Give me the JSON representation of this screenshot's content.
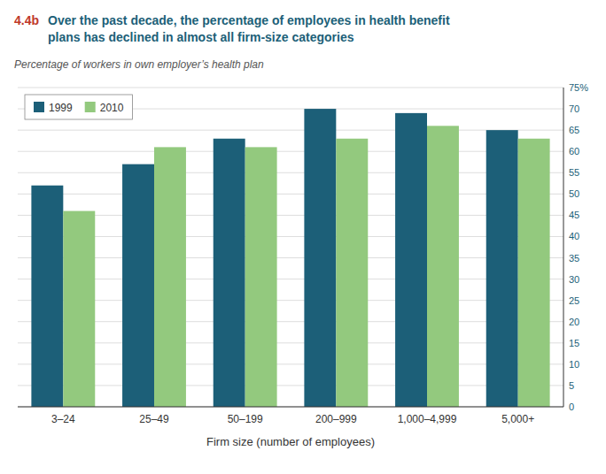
{
  "chart_data": {
    "type": "bar",
    "annotations": [
      "4.4b"
    ],
    "title": "Over the past decade, the percentage of employees in health benefit\nplans has declined in almost all firm-size categories",
    "subtitle": "Percentage of workers in own employer’s health plan",
    "x_label": "Firm size (number of employees)",
    "categories": [
      "3–24",
      "25–49",
      "50–199",
      "200–999",
      "1,000–4,999",
      "5,000+"
    ],
    "series": [
      {
        "name": "1999",
        "color": "#1c5f78",
        "values": [
          52,
          57,
          63,
          70,
          69,
          65
        ]
      },
      {
        "name": "2010",
        "color": "#93c97e",
        "values": [
          46,
          61,
          61,
          63,
          66,
          63
        ]
      }
    ],
    "ylim": [
      0,
      75
    ],
    "yticks": [
      0,
      5,
      10,
      15,
      20,
      25,
      30,
      35,
      40,
      45,
      50,
      55,
      60,
      65,
      70,
      {
        "value": 75,
        "label": "75%"
      }
    ],
    "grid": true,
    "legend": "upper left"
  }
}
